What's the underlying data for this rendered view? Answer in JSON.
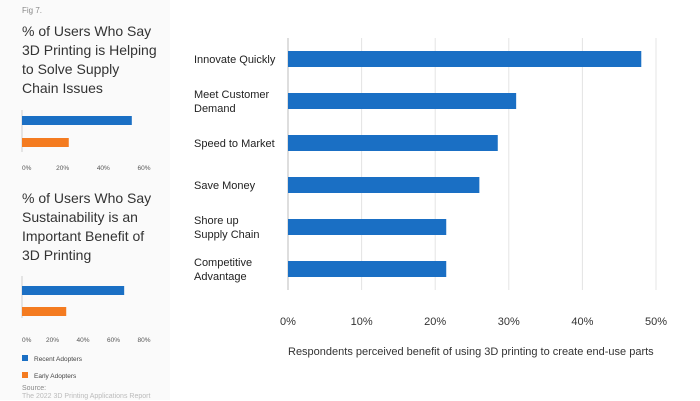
{
  "fig_label": "Fig 7.",
  "source_label": "Source:",
  "source_text": "The 2022 3D Printing Applications Report",
  "chart_data": [
    {
      "type": "bar",
      "orientation": "horizontal",
      "title_lines": [
        "% of Users Who Say",
        "3D Printing is Helping",
        "to Solve Supply",
        "Chain Issues"
      ],
      "series": [
        {
          "name": "Recent Adopters",
          "color": "#1a6fc4",
          "values": [
            54
          ]
        },
        {
          "name": "Early Adopters",
          "color": "#f47b20",
          "values": [
            23
          ]
        }
      ],
      "xlim": [
        0,
        60
      ],
      "xticks": [
        0,
        20,
        40,
        60
      ],
      "xtick_labels": [
        "0%",
        "20%",
        "40%",
        "60%"
      ]
    },
    {
      "type": "bar",
      "orientation": "horizontal",
      "title_lines": [
        "% of Users Who Say",
        "Sustainability is an",
        "Important Benefit of",
        "3D Printing"
      ],
      "series": [
        {
          "name": "Recent Adopters",
          "color": "#1a6fc4",
          "values": [
            67
          ]
        },
        {
          "name": "Early Adopters",
          "color": "#f47b20",
          "values": [
            29
          ]
        }
      ],
      "xlim": [
        0,
        80
      ],
      "xticks": [
        0,
        20,
        40,
        60,
        80
      ],
      "xtick_labels": [
        "0%",
        "20%",
        "40%",
        "60%",
        "80%"
      ],
      "legend": [
        {
          "label": "Recent Adopters",
          "color": "#1a6fc4"
        },
        {
          "label": "Early Adopters",
          "color": "#f47b20"
        }
      ]
    },
    {
      "type": "bar",
      "orientation": "horizontal",
      "color": "#1a6fc4",
      "categories": [
        [
          "Innovate Quickly"
        ],
        [
          "Meet Customer",
          "Demand"
        ],
        [
          "Speed to Market"
        ],
        [
          "Save Money"
        ],
        [
          "Shore up",
          "Supply Chain"
        ],
        [
          "Competitive",
          "Advantage"
        ]
      ],
      "values": [
        48,
        31,
        28.5,
        26,
        21.5,
        21.5
      ],
      "xlim": [
        0,
        50
      ],
      "xticks": [
        0,
        10,
        20,
        30,
        40,
        50
      ],
      "xtick_labels": [
        "0%",
        "10%",
        "20%",
        "30%",
        "40%",
        "50%"
      ],
      "xlabel": "Respondents perceived benefit of using 3D printing to create end-use parts",
      "grid": true
    }
  ]
}
